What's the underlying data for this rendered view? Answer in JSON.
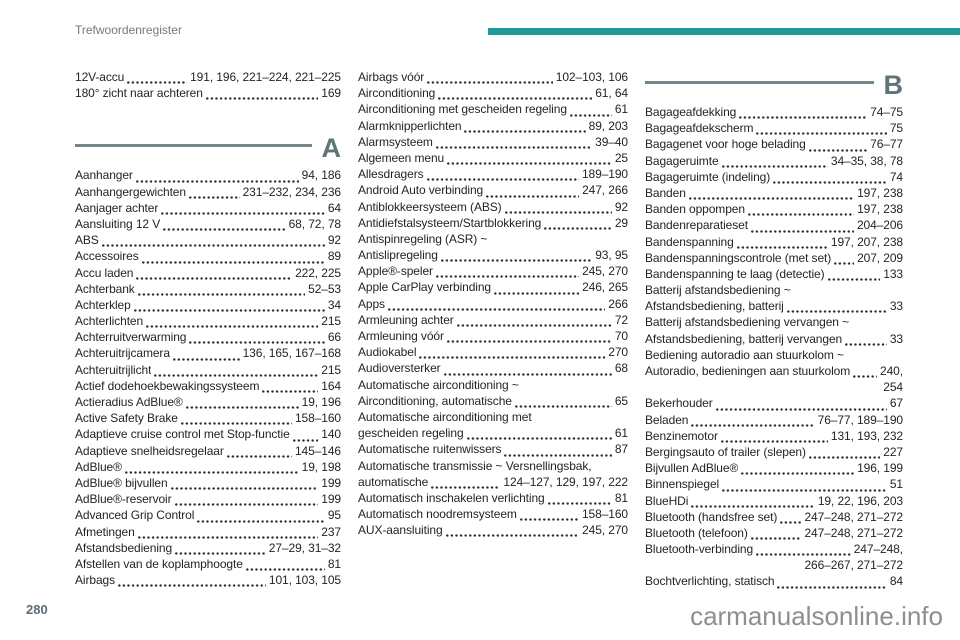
{
  "page": {
    "header": "Trefwoordenregister",
    "page_number": "280",
    "watermark": "carmanualsonline.info",
    "accent_color": "#1f9a99",
    "section_color": "#5f7478",
    "text_color": "#242424"
  },
  "index": {
    "columns": [
      {
        "blocks": [
          {
            "type": "entries",
            "items": [
              {
                "label": "12V-accu",
                "pages": "191, 196, 221–224, 221–225"
              },
              {
                "label": "180° zicht naar achteren",
                "pages": "169"
              }
            ]
          },
          {
            "type": "section",
            "letter": "A",
            "gap": true
          },
          {
            "type": "entries",
            "items": [
              {
                "label": "Aanhanger",
                "pages": "94, 186"
              },
              {
                "label": "Aanhangergewichten",
                "pages": "231–232, 234, 236"
              },
              {
                "label": "Aanjager achter",
                "pages": "64"
              },
              {
                "label": "Aansluiting 12 V",
                "pages": "68, 72, 78"
              },
              {
                "label": "ABS",
                "pages": "92"
              },
              {
                "label": "Accessoires",
                "pages": "89"
              },
              {
                "label": "Accu laden",
                "pages": "222, 225"
              },
              {
                "label": "Achterbank",
                "pages": "52–53"
              },
              {
                "label": "Achterklep",
                "pages": "34"
              },
              {
                "label": "Achterlichten",
                "pages": "215"
              },
              {
                "label": "Achterruitverwarming",
                "pages": "66"
              },
              {
                "label": "Achteruitrijcamera",
                "pages": "136, 165, 167–168"
              },
              {
                "label": "Achteruitrijlicht",
                "pages": "215"
              },
              {
                "label": "Actief dodehoekbewakingssysteem",
                "pages": "164"
              },
              {
                "label": "Actieradius AdBlue®",
                "pages": "19, 196"
              },
              {
                "label": "Active Safety Brake",
                "pages": "158–160"
              },
              {
                "label": "Adaptieve cruise control met Stop-functie",
                "pages": "140"
              },
              {
                "label": "Adaptieve snelheidsregelaar",
                "pages": "145–146"
              },
              {
                "label": "AdBlue®",
                "pages": "19, 198"
              },
              {
                "label": "AdBlue® bijvullen",
                "pages": "199"
              },
              {
                "label": "AdBlue®-reservoir",
                "pages": "199"
              },
              {
                "label": "Advanced Grip Control",
                "pages": "95"
              },
              {
                "label": "Afmetingen",
                "pages": "237"
              },
              {
                "label": "Afstandsbediening",
                "pages": "27–29, 31–32"
              },
              {
                "label": "Afstellen van de koplamphoogte",
                "pages": "81"
              },
              {
                "label": "Airbags",
                "pages": "101, 103, 105"
              }
            ]
          }
        ]
      },
      {
        "blocks": [
          {
            "type": "entries",
            "items": [
              {
                "label": "Airbags vóór",
                "pages": "102–103, 106"
              },
              {
                "label": "Airconditioning",
                "pages": "61, 64"
              },
              {
                "label": "Airconditioning met gescheiden regeling",
                "pages": "61"
              },
              {
                "label": "Alarmknipperlichten",
                "pages": "89, 203"
              },
              {
                "label": "Alarmsysteem",
                "pages": "39–40"
              },
              {
                "label": "Algemeen menu",
                "pages": "25"
              },
              {
                "label": "Allesdragers",
                "pages": "189–190"
              },
              {
                "label": "Android Auto verbinding",
                "pages": "247, 266"
              },
              {
                "label": "Antiblokkeersysteem (ABS)",
                "pages": "92"
              },
              {
                "label": "Antidiefstalsysteem/Startblokkering",
                "pages": "29"
              },
              {
                "label": "Antispinregeling (ASR) ~",
                "pages": ""
              },
              {
                "label": "Antislipregeling",
                "pages": "93, 95"
              },
              {
                "label": "Apple®-speler",
                "pages": "245, 270"
              },
              {
                "label": "Apple CarPlay verbinding",
                "pages": "246, 265"
              },
              {
                "label": "Apps",
                "pages": "266"
              },
              {
                "label": "Armleuning achter",
                "pages": "72"
              },
              {
                "label": "Armleuning vóór",
                "pages": "70"
              },
              {
                "label": "Audiokabel",
                "pages": "270"
              },
              {
                "label": "Audioversterker",
                "pages": "68"
              },
              {
                "label": "Automatische airconditioning ~",
                "pages": ""
              },
              {
                "label": "Airconditioning, automatische",
                "pages": "65"
              },
              {
                "label": "Automatische airconditioning met",
                "pages": ""
              },
              {
                "label": "gescheiden regeling",
                "pages": "61"
              },
              {
                "label": "Automatische ruitenwissers",
                "pages": "87"
              },
              {
                "label": "Automatische transmissie ~ Versnellingsbak,",
                "pages": ""
              },
              {
                "label": "automatische",
                "pages": "124–127, 129, 197, 222"
              },
              {
                "label": "Automatisch inschakelen verlichting",
                "pages": "81"
              },
              {
                "label": "Automatisch noodremsysteem",
                "pages": "158–160"
              },
              {
                "label": "AUX-aansluiting",
                "pages": "245, 270"
              }
            ]
          }
        ]
      },
      {
        "blocks": [
          {
            "type": "section",
            "letter": "B",
            "gap": false
          },
          {
            "type": "entries",
            "items": [
              {
                "label": "Bagageafdekking",
                "pages": "74–75"
              },
              {
                "label": "Bagageafdekscherm",
                "pages": "75"
              },
              {
                "label": "Bagagenet voor hoge belading",
                "pages": "76–77"
              },
              {
                "label": "Bagageruimte",
                "pages": "34–35, 38, 78"
              },
              {
                "label": "Bagageruimte (indeling)",
                "pages": "74"
              },
              {
                "label": "Banden",
                "pages": "197, 238"
              },
              {
                "label": "Banden oppompen",
                "pages": "197, 238"
              },
              {
                "label": "Bandenreparatieset",
                "pages": "204–206"
              },
              {
                "label": "Bandenspanning",
                "pages": "197, 207, 238"
              },
              {
                "label": "Bandenspanningscontrole (met set)",
                "pages": "207, 209"
              },
              {
                "label": "Bandenspanning te laag (detectie)",
                "pages": "133"
              },
              {
                "label": "Batterij afstandsbediening ~",
                "pages": ""
              },
              {
                "label": "Afstandsbediening, batterij",
                "pages": "33"
              },
              {
                "label": "Batterij afstandsbediening vervangen ~",
                "pages": ""
              },
              {
                "label": "Afstandsbediening, batterij vervangen",
                "pages": "33"
              },
              {
                "label": "Bediening autoradio aan stuurkolom ~",
                "pages": ""
              },
              {
                "label": "Autoradio, bedieningen aan stuurkolom",
                "pages": "240,"
              },
              {
                "label": "",
                "pages": "254"
              },
              {
                "label": "Bekerhouder",
                "pages": "67"
              },
              {
                "label": "Beladen",
                "pages": "76–77, 189–190"
              },
              {
                "label": "Benzinemotor",
                "pages": "131, 193, 232"
              },
              {
                "label": "Bergingsauto of trailer (slepen)",
                "pages": "227"
              },
              {
                "label": "Bijvullen AdBlue®",
                "pages": "196, 199"
              },
              {
                "label": "Binnenspiegel",
                "pages": "51"
              },
              {
                "label": "BlueHDi",
                "pages": "19, 22, 196, 203"
              },
              {
                "label": "Bluetooth (handsfree set)",
                "pages": "247–248, 271–272"
              },
              {
                "label": "Bluetooth (telefoon)",
                "pages": "247–248, 271–272"
              },
              {
                "label": "Bluetooth-verbinding",
                "pages": "247–248,"
              },
              {
                "label": "",
                "pages": "266–267, 271–272"
              },
              {
                "label": "Bochtverlichting, statisch",
                "pages": "84"
              }
            ]
          }
        ]
      }
    ]
  }
}
